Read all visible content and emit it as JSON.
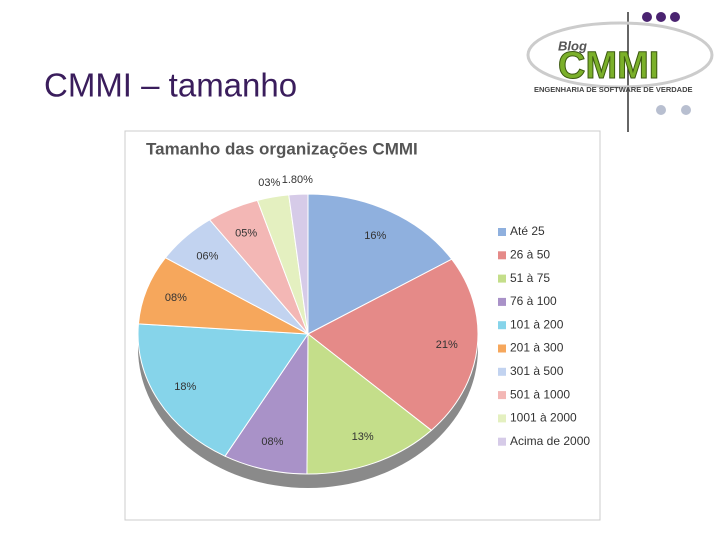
{
  "slide": {
    "title": "CMMI – tamanho"
  },
  "logo": {
    "blog": "Blog",
    "name": "CMMI",
    "tagline": "ENGENHARIA DE SOFTWARE DE VERDADE"
  },
  "chart_data": {
    "type": "pie",
    "title": "Tamanho das organizações CMMI",
    "categories": [
      "Até 25",
      "26 à 50",
      "51 à 75",
      "76 à 100",
      "101 à 200",
      "201 à 300",
      "301 à 500",
      "501 à 1000",
      "1001 à 2000",
      "Acima de 2000"
    ],
    "values": [
      16,
      21,
      13,
      8,
      18,
      8,
      6,
      5,
      3,
      1.8
    ],
    "value_labels": [
      "16%",
      "21%",
      "13%",
      "08%",
      "18%",
      "08%",
      "06%",
      "05%",
      "03%",
      "1.80%"
    ],
    "colors": [
      "#8fb0de",
      "#e58a88",
      "#c4de8a",
      "#a992c8",
      "#86d4ea",
      "#f6a75c",
      "#c2d3f0",
      "#f3b7b5",
      "#e4f0c0",
      "#d6cbe8"
    ],
    "legend": "right"
  }
}
